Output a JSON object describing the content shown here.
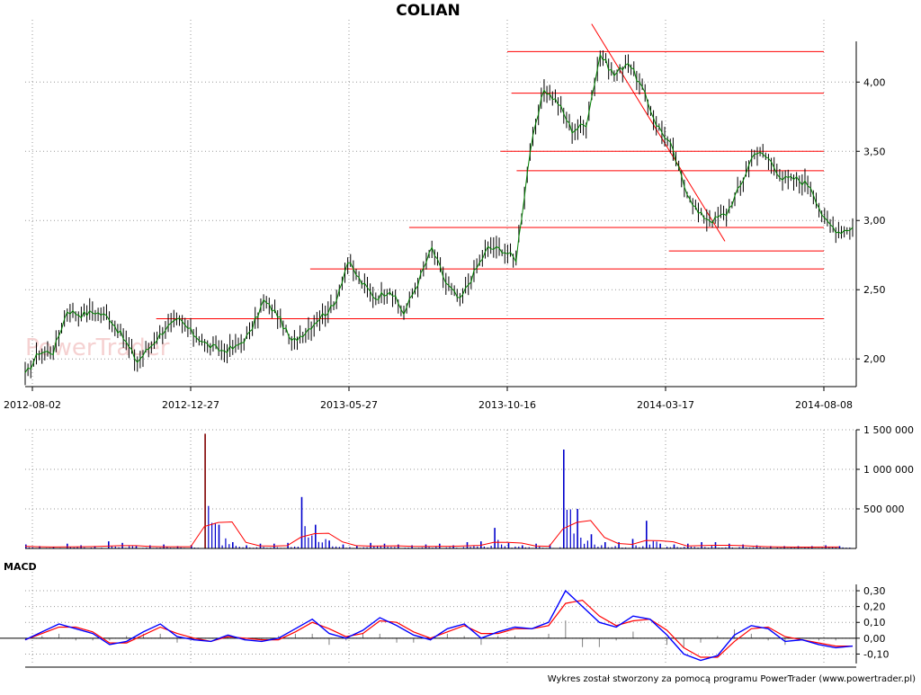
{
  "title": "COLIAN",
  "macd_label": "MACD",
  "footer": "Wykres został stworzony za pomocą programu PowerTrader (www.powertrader.pl)",
  "watermark": "PowerTrader",
  "colors": {
    "candle": "#000000",
    "price_line": "#008000",
    "trend_lines": "#ff0000",
    "volume_bars": "#0000cc",
    "volume_avg": "#ff0000",
    "macd": "#0000ff",
    "signal": "#ff0000",
    "histogram": "#808080",
    "grid": "#999999"
  },
  "chart_data": [
    {
      "type": "line",
      "panel": "price",
      "title": "COLIAN",
      "x_ticks": [
        "2012-08-02",
        "2012-12-27",
        "2013-05-27",
        "2013-10-16",
        "2014-03-17",
        "2014-08-08"
      ],
      "y_ticks": [
        "2,00",
        "2,50",
        "3,00",
        "3,50",
        "4,00"
      ],
      "ylim": [
        1.8,
        4.45
      ],
      "grid": true,
      "series": [
        {
          "values": [
            1.88,
            2.05,
            2.05,
            2.35,
            2.32,
            2.34,
            2.3,
            2.15,
            1.98,
            2.1,
            2.22,
            2.28,
            2.18,
            2.1,
            2.06,
            2.08,
            2.18,
            2.42,
            2.32,
            2.12,
            2.2,
            2.3,
            2.38,
            2.7,
            2.55,
            2.44,
            2.5,
            2.33,
            2.55,
            2.8,
            2.55,
            2.42,
            2.62,
            2.8,
            2.79,
            2.72,
            3.5,
            3.95,
            3.85,
            3.65,
            3.7,
            4.2,
            4.05,
            4.15,
            3.95,
            3.7,
            3.55,
            3.25,
            3.05,
            3.0,
            3.05,
            3.25,
            3.5,
            3.45,
            3.3,
            3.3,
            3.25,
            3.0,
            2.92,
            2.95
          ]
        }
      ],
      "trend_lines": [
        {
          "from": "2013-10-16",
          "to": "2014-08-08",
          "y": 4.22
        },
        {
          "from": "2013-10-20",
          "to": "2014-08-08",
          "y": 3.92
        },
        {
          "from": "2013-10-10",
          "to": "2014-08-08",
          "y": 3.5
        },
        {
          "from": "2013-10-25",
          "to": "2014-08-08",
          "y": 3.36
        },
        {
          "from": "2013-07-20",
          "to": "2014-08-08",
          "y": 2.95
        },
        {
          "from": "2014-03-20",
          "to": "2014-08-08",
          "y": 2.78
        },
        {
          "from": "2013-04-20",
          "to": "2014-08-08",
          "y": 2.65
        },
        {
          "from": "2012-11-25",
          "to": "2014-08-08",
          "y": 2.29
        },
        {
          "from": "2014-01-05",
          "to": "2014-05-10",
          "y_start": 4.42,
          "y_end": 2.85
        }
      ]
    },
    {
      "type": "bar",
      "panel": "volume",
      "y_ticks": [
        "500 000",
        "1 000 000",
        "1 500 000"
      ],
      "ylim": [
        0,
        1500000
      ],
      "values": [
        50000,
        30000,
        20000,
        60000,
        40000,
        30000,
        90000,
        70000,
        30000,
        40000,
        50000,
        30000,
        40000,
        1450000,
        300000,
        80000,
        40000,
        60000,
        60000,
        70000,
        650000,
        300000,
        100000,
        50000,
        40000,
        70000,
        60000,
        50000,
        40000,
        50000,
        60000,
        40000,
        80000,
        90000,
        260000,
        70000,
        40000,
        60000,
        50000,
        1250000,
        500000,
        180000,
        80000,
        80000,
        120000,
        350000,
        60000,
        50000,
        60000,
        80000,
        80000,
        60000,
        50000,
        40000,
        30000,
        30000,
        30000,
        30000,
        40000,
        30000
      ]
    },
    {
      "type": "line",
      "panel": "macd",
      "title": "MACD",
      "y_ticks": [
        "-0,10",
        "0,00",
        "0,10",
        "0,20",
        "0,30"
      ],
      "ylim": [
        -0.16,
        0.34
      ],
      "series": [
        {
          "values": [
            -0.01,
            0.04,
            0.09,
            0.06,
            0.03,
            -0.04,
            -0.02,
            0.04,
            0.09,
            0.01,
            -0.01,
            -0.02,
            0.02,
            -0.01,
            -0.02,
            0.0,
            0.06,
            0.12,
            0.03,
            0.0,
            0.05,
            0.13,
            0.08,
            0.02,
            -0.01,
            0.06,
            0.09,
            0.0,
            0.04,
            0.07,
            0.06,
            0.1,
            0.3,
            0.2,
            0.1,
            0.07,
            0.14,
            0.12,
            0.02,
            -0.1,
            -0.14,
            -0.11,
            0.02,
            0.08,
            0.06,
            -0.02,
            -0.01,
            -0.04,
            -0.06,
            -0.05
          ]
        },
        {
          "values": [
            -0.01,
            0.03,
            0.07,
            0.07,
            0.04,
            -0.03,
            -0.03,
            0.02,
            0.07,
            0.03,
            0.0,
            -0.02,
            0.01,
            0.0,
            -0.01,
            -0.01,
            0.04,
            0.1,
            0.06,
            0.01,
            0.03,
            0.11,
            0.1,
            0.04,
            0.0,
            0.04,
            0.08,
            0.03,
            0.03,
            0.06,
            0.06,
            0.08,
            0.22,
            0.24,
            0.14,
            0.08,
            0.11,
            0.12,
            0.05,
            -0.06,
            -0.12,
            -0.12,
            -0.02,
            0.06,
            0.07,
            0.01,
            -0.01,
            -0.03,
            -0.05,
            -0.05
          ]
        }
      ]
    }
  ]
}
